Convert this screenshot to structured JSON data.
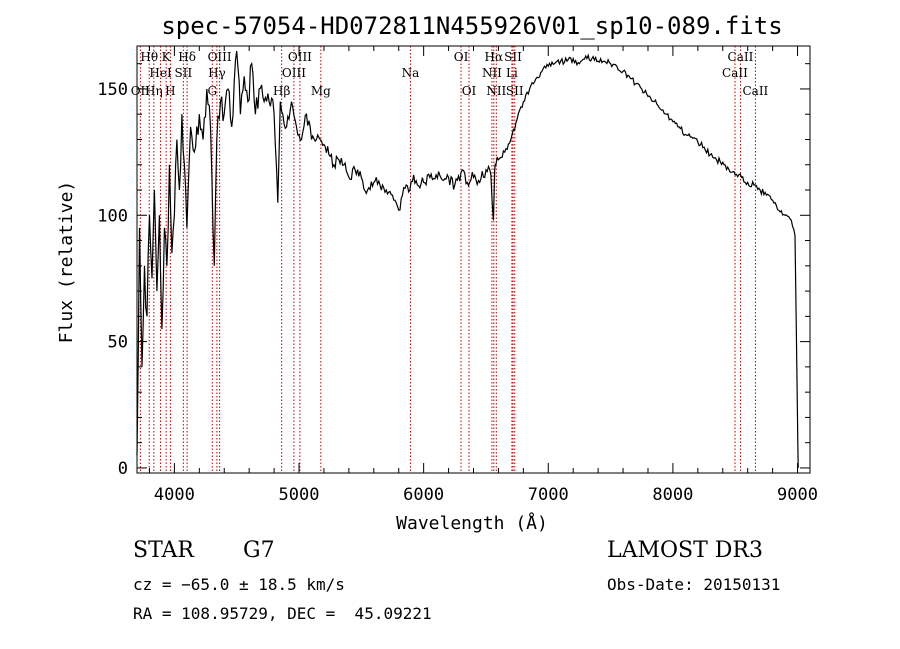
{
  "chart_data": {
    "type": "line",
    "title": "spec-57054-HD072811N455926V01_sp10-089.fits",
    "xlabel": "Wavelength (Å)",
    "ylabel": "Flux (relative)",
    "xlim": [
      3700,
      9100
    ],
    "ylim": [
      -2,
      167
    ],
    "xticks": [
      4000,
      5000,
      6000,
      7000,
      8000,
      9000
    ],
    "xtick_labels": [
      "4000",
      "5000",
      "6000",
      "7000",
      "8000",
      "9000"
    ],
    "yticks": [
      0,
      50,
      100,
      150
    ],
    "ytick_labels": [
      "0",
      "50",
      "100",
      "150"
    ],
    "series": [
      {
        "name": "flux",
        "x": [
          3700,
          3720,
          3740,
          3760,
          3780,
          3800,
          3820,
          3840,
          3860,
          3880,
          3900,
          3920,
          3940,
          3960,
          3980,
          4000,
          4020,
          4040,
          4060,
          4080,
          4100,
          4130,
          4160,
          4200,
          4230,
          4260,
          4290,
          4320,
          4340,
          4370,
          4400,
          4430,
          4460,
          4500,
          4530,
          4560,
          4590,
          4620,
          4650,
          4680,
          4720,
          4760,
          4800,
          4830,
          4850,
          4870,
          4900,
          4940,
          4980,
          5020,
          5060,
          5100,
          5140,
          5170,
          5200,
          5240,
          5280,
          5320,
          5360,
          5400,
          5450,
          5500,
          5550,
          5600,
          5650,
          5700,
          5750,
          5780,
          5800,
          5830,
          5860,
          5890,
          5920,
          5950,
          6000,
          6050,
          6100,
          6150,
          6200,
          6250,
          6300,
          6350,
          6400,
          6450,
          6500,
          6540,
          6560,
          6570,
          6580,
          6600,
          6650,
          6700,
          6750,
          6800,
          6850,
          6900,
          6950,
          7000,
          7050,
          7100,
          7150,
          7200,
          7250,
          7300,
          7350,
          7400,
          7450,
          7500,
          7550,
          7600,
          7650,
          7700,
          7750,
          7800,
          7850,
          7900,
          7950,
          8000,
          8050,
          8100,
          8150,
          8200,
          8250,
          8300,
          8350,
          8400,
          8450,
          8500,
          8550,
          8600,
          8650,
          8700,
          8750,
          8800,
          8850,
          8900,
          8950,
          8980,
          9000,
          9005
        ],
        "y": [
          5,
          95,
          40,
          80,
          60,
          100,
          75,
          110,
          70,
          100,
          55,
          95,
          80,
          120,
          85,
          100,
          130,
          110,
          140,
          120,
          95,
          135,
          125,
          140,
          130,
          150,
          135,
          80,
          130,
          145,
          140,
          150,
          135,
          165,
          140,
          155,
          145,
          160,
          140,
          150,
          145,
          145,
          140,
          105,
          145,
          140,
          135,
          145,
          135,
          130,
          140,
          130,
          130,
          130,
          128,
          124,
          120,
          122,
          120,
          115,
          118,
          115,
          110,
          113,
          112,
          110,
          108,
          105,
          102,
          108,
          112,
          110,
          116,
          112,
          113,
          115,
          116,
          114,
          115,
          112,
          117,
          113,
          115,
          113,
          118,
          116,
          98,
          118,
          120,
          122,
          125,
          130,
          138,
          145,
          150,
          154,
          157,
          159,
          160,
          161,
          161,
          162,
          160,
          163,
          162,
          161,
          161,
          160,
          159,
          157,
          155,
          152,
          150,
          147,
          145,
          142,
          140,
          137,
          135,
          132,
          131,
          129,
          127,
          124,
          122,
          121,
          118,
          116,
          115,
          113,
          112,
          110,
          108,
          106,
          102,
          100,
          98,
          92,
          20,
          0
        ]
      }
    ],
    "lines": [
      {
        "name": "OII",
        "x": 3727,
        "label_row": 2
      },
      {
        "name": "Hθ",
        "x": 3798,
        "label_row": 0
      },
      {
        "name": "Hη",
        "x": 3835,
        "label_row": 2
      },
      {
        "name": "HeI",
        "x": 3889,
        "label_row": 1
      },
      {
        "name": "K",
        "x": 3934,
        "label_row": 0
      },
      {
        "name": "H",
        "x": 3968,
        "label_row": 2
      },
      {
        "name": "SII",
        "x": 4072,
        "label_row": 1
      },
      {
        "name": "Hδ",
        "x": 4102,
        "label_row": 0
      },
      {
        "name": "G",
        "x": 4304,
        "label_row": 2
      },
      {
        "name": "Hγ",
        "x": 4341,
        "label_row": 1
      },
      {
        "name": "OIII",
        "x": 4363,
        "label_row": 0
      },
      {
        "name": "Hβ",
        "x": 4861,
        "label_row": 2
      },
      {
        "name": "OIII",
        "x": 4959,
        "label_row": 1
      },
      {
        "name": "OIII",
        "x": 5007,
        "label_row": 0
      },
      {
        "name": "Mg",
        "x": 5175,
        "label_row": 2
      },
      {
        "name": "Na",
        "x": 5894,
        "label_row": 1
      },
      {
        "name": "OI",
        "x": 6300,
        "label_row": 0
      },
      {
        "name": "OI",
        "x": 6364,
        "label_row": 2
      },
      {
        "name": "NII",
        "x": 6548,
        "label_row": 1
      },
      {
        "name": "Hα",
        "x": 6563,
        "label_row": 0
      },
      {
        "name": "NII",
        "x": 6583,
        "label_row": 2
      },
      {
        "name": "Li",
        "x": 6708,
        "label_row": 1
      },
      {
        "name": "SII",
        "x": 6717,
        "label_row": 0
      },
      {
        "name": "SII",
        "x": 6731,
        "label_row": 2
      },
      {
        "name": "CaII",
        "x": 8498,
        "label_row": 1
      },
      {
        "name": "CaII",
        "x": 8542,
        "label_row": 0
      },
      {
        "name": "CaII",
        "x": 8662,
        "label_row": 2
      }
    ]
  },
  "info": {
    "object_type": "STAR",
    "spectral_class": "G7",
    "survey": "LAMOST DR3",
    "cz": "cz = −65.0 ± 18.5 km/s",
    "obs_date": "Obs-Date: 20150131",
    "coords": "RA = 108.95729, DEC =  45.09221"
  }
}
